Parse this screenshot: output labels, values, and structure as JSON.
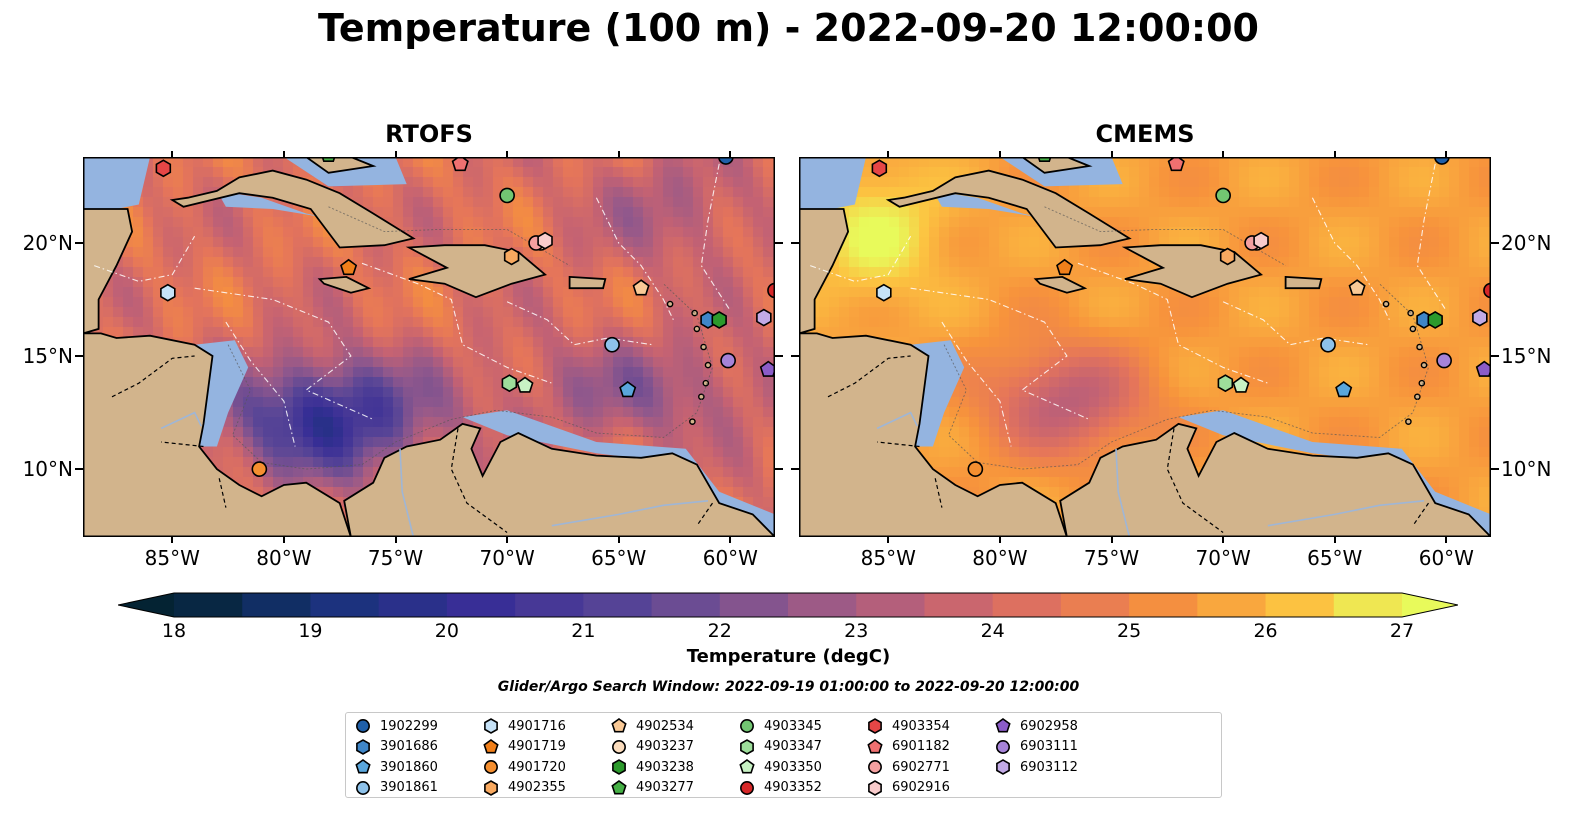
{
  "figure": {
    "title": "Temperature (100 m) - 2022-09-20 12:00:00",
    "panels": [
      {
        "id": "rtofs",
        "title": "RTOFS"
      },
      {
        "id": "cmems",
        "title": "CMEMS"
      }
    ],
    "lon_ticks": [
      "85°W",
      "80°W",
      "75°W",
      "70°W",
      "65°W",
      "60°W"
    ],
    "lon_values": [
      -85,
      -80,
      -75,
      -70,
      -65,
      -60
    ],
    "lat_ticks": [
      "20°N",
      "15°N",
      "10°N"
    ],
    "lat_values": [
      20,
      15,
      10
    ],
    "extent": {
      "lon_min": -89,
      "lon_max": -58,
      "lat_min": 7,
      "lat_max": 23.8
    },
    "colorbar": {
      "label": "Temperature (degC)",
      "ticks": [
        "18",
        "19",
        "20",
        "21",
        "22",
        "23",
        "24",
        "25",
        "26",
        "27"
      ],
      "tick_values": [
        18,
        19,
        20,
        21,
        22,
        23,
        24,
        25,
        26,
        27
      ],
      "min": 18,
      "max": 27,
      "step": 0.5,
      "extend": "both",
      "colormap": "thermal"
    },
    "search_window": "Glider/Argo Search Window: 2022-09-19 01:00:00 to 2022-09-20 12:00:00",
    "colors": {
      "land": "#d2b48c",
      "shelf": "#94b4e0",
      "deep_fill": "#0c2a3a",
      "coast": "#000000"
    },
    "legend": [
      {
        "id": "1902299",
        "marker": "circle",
        "color": "#1f5fa8"
      },
      {
        "id": "3901686",
        "marker": "hexagon",
        "color": "#3f86c8"
      },
      {
        "id": "3901860",
        "marker": "pentagon",
        "color": "#5aa6dc"
      },
      {
        "id": "3901861",
        "marker": "circle",
        "color": "#8ec2ea"
      },
      {
        "id": "4901716",
        "marker": "hexagon",
        "color": "#c6e2f7"
      },
      {
        "id": "4901719",
        "marker": "pentagon",
        "color": "#f07f1a"
      },
      {
        "id": "4901720",
        "marker": "circle",
        "color": "#f58f30"
      },
      {
        "id": "4902355",
        "marker": "hexagon",
        "color": "#f8a960"
      },
      {
        "id": "4902534",
        "marker": "pentagon",
        "color": "#f9c996"
      },
      {
        "id": "4903237",
        "marker": "circle",
        "color": "#fbdcbd"
      },
      {
        "id": "4903238",
        "marker": "hexagon",
        "color": "#2c9a2c"
      },
      {
        "id": "4903277",
        "marker": "pentagon",
        "color": "#46b046"
      },
      {
        "id": "4903345",
        "marker": "circle",
        "color": "#72c672"
      },
      {
        "id": "4903347",
        "marker": "hexagon",
        "color": "#9ede9b"
      },
      {
        "id": "4903350",
        "marker": "pentagon",
        "color": "#c8f2c4"
      },
      {
        "id": "4903352",
        "marker": "circle",
        "color": "#d62728"
      },
      {
        "id": "4903354",
        "marker": "hexagon",
        "color": "#e64646"
      },
      {
        "id": "6901182",
        "marker": "pentagon",
        "color": "#ef7070"
      },
      {
        "id": "6902771",
        "marker": "circle",
        "color": "#f4a0a0"
      },
      {
        "id": "6902916",
        "marker": "hexagon",
        "color": "#f9cccc"
      },
      {
        "id": "6902958",
        "marker": "pentagon",
        "color": "#8b5cc8"
      },
      {
        "id": "6903111",
        "marker": "circle",
        "color": "#a683d8"
      },
      {
        "id": "6903112",
        "marker": "hexagon",
        "color": "#c2aae6"
      }
    ],
    "floats": [
      {
        "id": "1902299",
        "lon": -60.2,
        "lat": 23.8
      },
      {
        "id": "3901686",
        "lon": -61.0,
        "lat": 16.6
      },
      {
        "id": "3901860",
        "lon": -64.6,
        "lat": 13.5
      },
      {
        "id": "3901861",
        "lon": -65.3,
        "lat": 15.5
      },
      {
        "id": "4901716",
        "lon": -85.2,
        "lat": 17.8
      },
      {
        "id": "4901719",
        "lon": -77.1,
        "lat": 18.9
      },
      {
        "id": "4901720",
        "lon": -81.1,
        "lat": 10.0
      },
      {
        "id": "4902355",
        "lon": -69.8,
        "lat": 19.4
      },
      {
        "id": "4902534",
        "lon": -64.0,
        "lat": 18.0
      },
      {
        "id": "4903237",
        "lon": -68.5,
        "lat": 20.0
      },
      {
        "id": "4903238",
        "lon": -60.5,
        "lat": 16.6
      },
      {
        "id": "4903277",
        "lon": -78.0,
        "lat": 23.9
      },
      {
        "id": "4903345",
        "lon": -70.0,
        "lat": 22.1
      },
      {
        "id": "4903347",
        "lon": -69.9,
        "lat": 13.8
      },
      {
        "id": "4903350",
        "lon": -69.2,
        "lat": 13.7
      },
      {
        "id": "4903352",
        "lon": -58.0,
        "lat": 17.9
      },
      {
        "id": "4903354",
        "lon": -85.4,
        "lat": 23.3
      },
      {
        "id": "6901182",
        "lon": -72.1,
        "lat": 23.5
      },
      {
        "id": "6902771",
        "lon": -68.7,
        "lat": 20.0
      },
      {
        "id": "6902916",
        "lon": -68.3,
        "lat": 20.1
      },
      {
        "id": "6902958",
        "lon": -58.3,
        "lat": 14.4
      },
      {
        "id": "6903111",
        "lon": -60.1,
        "lat": 14.8
      },
      {
        "id": "6903112",
        "lon": -58.5,
        "lat": 16.7
      }
    ]
  }
}
